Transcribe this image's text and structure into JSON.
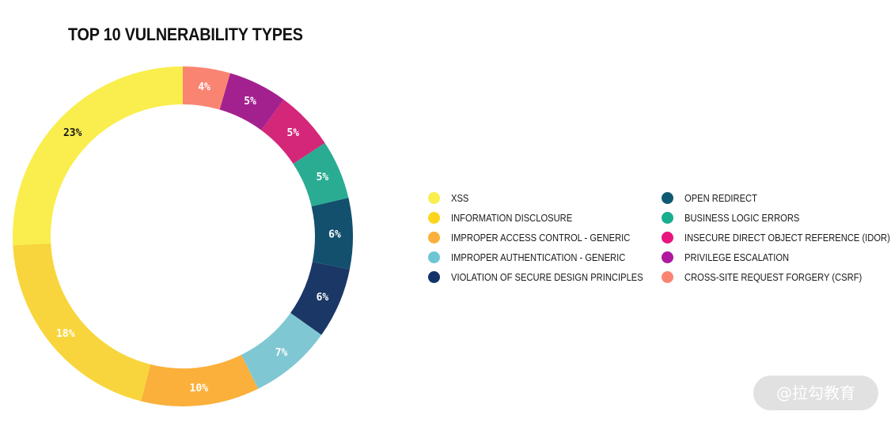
{
  "chart_data": {
    "type": "pie",
    "title": "TOP 10 VULNERABILITY TYPES",
    "donut": true,
    "legend_position": "right",
    "categories": [
      "XSS",
      "INFORMATION DISCLOSURE",
      "IMPROPER ACCESS CONTROL - GENERIC",
      "IMPROPER AUTHENTICATION - GENERIC",
      "VIOLATION OF SECURE DESIGN PRINCIPLES",
      "OPEN REDIRECT",
      "BUSINESS LOGIC ERRORS",
      "INSECURE DIRECT OBJECT REFERENCE (IDOR)",
      "PRIVILEGE ESCALATION",
      "CROSS-SITE REQUEST FORGERY (CSRF)"
    ],
    "values": [
      23,
      18,
      10,
      7,
      6,
      6,
      5,
      5,
      5,
      4
    ],
    "labels": [
      "23%",
      "18%",
      "10%",
      "7%",
      "6%",
      "6%",
      "5%",
      "5%",
      "5%",
      "4%"
    ],
    "colors": [
      "#f9ee4d",
      "#f8d53c",
      "#fbb03b",
      "#7fc8d3",
      "#1b3766",
      "#12506e",
      "#2aac93",
      "#d4277a",
      "#a3218f",
      "#fa8472"
    ],
    "label_colors": [
      "#1a1a1a",
      "#ffffff",
      "#ffffff",
      "#ffffff",
      "#ffffff",
      "#ffffff",
      "#ffffff",
      "#ffffff",
      "#ffffff",
      "#ffffff"
    ]
  },
  "legend": {
    "column_1": [
      {
        "label": "XSS",
        "color": "#f9ee4d"
      },
      {
        "label": "INFORMATION DISCLOSURE",
        "color": "#fdd51d"
      },
      {
        "label": "IMPROPER ACCESS CONTROL - GENERIC",
        "color": "#fbb03b"
      },
      {
        "label": "IMPROPER AUTHENTICATION - GENERIC",
        "color": "#6ec6d4"
      },
      {
        "label": "VIOLATION OF SECURE DESIGN PRINCIPLES",
        "color": "#14326a"
      }
    ],
    "column_2": [
      {
        "label": "OPEN REDIRECT",
        "color": "#0f5a72"
      },
      {
        "label": "BUSINESS LOGIC ERRORS",
        "color": "#18ad8f"
      },
      {
        "label": "INSECURE DIRECT OBJECT REFERENCE (IDOR)",
        "color": "#e8157f"
      },
      {
        "label": "PRIVILEGE ESCALATION",
        "color": "#b0189e"
      },
      {
        "label": "CROSS-SITE REQUEST FORGERY (CSRF)",
        "color": "#fa8472"
      }
    ]
  },
  "watermark": {
    "text": "@拉勾教育"
  }
}
